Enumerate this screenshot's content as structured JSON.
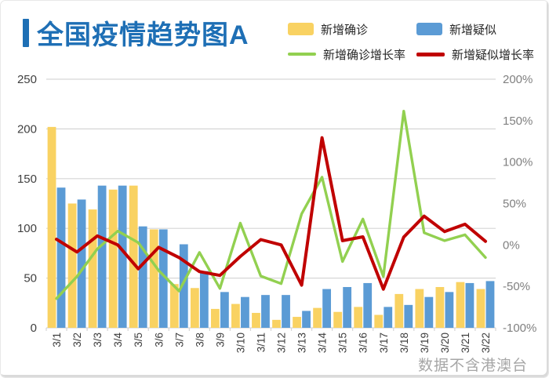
{
  "header": {
    "title": "全国疫情趋势图A",
    "accent_color": "#1e6fb5"
  },
  "footer": {
    "note": "数据不含港澳台"
  },
  "colors": {
    "confirmed_bar": "#f9d262",
    "suspected_bar": "#5b9bd5",
    "confirmed_rate_line": "#92d050",
    "suspected_rate_line": "#c00000",
    "gridline": "#d6d6d6",
    "left_axis_text": "#404040",
    "right_axis_text": "#808080",
    "x_axis_text": "#3d3d3d"
  },
  "chart_data": {
    "type": "combo_bar_line",
    "title": "全国疫情趋势图A",
    "categories": [
      "3/1",
      "3/2",
      "3/3",
      "3/4",
      "3/5",
      "3/6",
      "3/7",
      "3/8",
      "3/9",
      "3/10",
      "3/11",
      "3/12",
      "3/13",
      "3/14",
      "3/15",
      "3/16",
      "3/17",
      "3/18",
      "3/19",
      "3/20",
      "3/21",
      "3/22"
    ],
    "bar_series": [
      {
        "name": "新增确诊",
        "color": "#f9d262",
        "values": [
          202,
          125,
          119,
          139,
          143,
          99,
          44,
          40,
          19,
          24,
          15,
          8,
          11,
          20,
          16,
          21,
          13,
          34,
          39,
          41,
          46,
          39
        ]
      },
      {
        "name": "新增疑似",
        "color": "#5b9bd5",
        "values": [
          141,
          129,
          143,
          143,
          102,
          99,
          84,
          57,
          36,
          31,
          33,
          33,
          17,
          39,
          41,
          45,
          21,
          23,
          31,
          36,
          45,
          47
        ]
      }
    ],
    "line_series": [
      {
        "name": "新增确诊增长率",
        "color": "#92d050",
        "axis": "right",
        "width": 3.4,
        "values_pct": [
          -64.7,
          -38.1,
          -4.8,
          16.8,
          2.9,
          -30.8,
          -55.6,
          -9.1,
          -52.5,
          26.3,
          -37.5,
          -46.7,
          37.5,
          81.8,
          -20.0,
          31.3,
          -38.1,
          161.5,
          14.7,
          5.1,
          12.2,
          -15.2
        ]
      },
      {
        "name": "新增疑似增长率",
        "color": "#c00000",
        "axis": "right",
        "width": 4,
        "values_pct": [
          6.8,
          -8.5,
          10.9,
          0.0,
          -28.7,
          -2.9,
          -15.2,
          -32.1,
          -36.8,
          -13.9,
          6.5,
          0.0,
          -48.5,
          129.4,
          5.1,
          9.8,
          -53.3,
          9.5,
          34.8,
          16.1,
          25.0,
          4.4
        ]
      }
    ],
    "left_axis": {
      "min": 0,
      "max": 250,
      "ticks": [
        250,
        200,
        150,
        100,
        50,
        0
      ]
    },
    "right_axis": {
      "min": -100,
      "max": 200,
      "ticks": [
        200,
        150,
        100,
        50,
        0,
        -50,
        -100
      ],
      "suffix": "%"
    },
    "grid": true,
    "legend_position": "top-right"
  }
}
